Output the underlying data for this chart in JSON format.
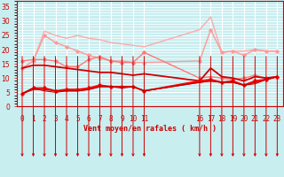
{
  "bg_color": "#c8eef0",
  "grid_color": "#ffffff",
  "x_ticks": [
    0,
    1,
    2,
    3,
    4,
    5,
    6,
    7,
    8,
    9,
    10,
    11,
    16,
    17,
    18,
    19,
    20,
    21,
    22,
    23
  ],
  "xlabel": "Vent moyen/en rafales ( km/h )",
  "ylim": [
    0,
    37
  ],
  "yticks": [
    0,
    5,
    10,
    15,
    20,
    25,
    30,
    35
  ],
  "xlim": [
    -0.5,
    23.5
  ],
  "lines": [
    {
      "x": [
        0,
        1,
        2,
        3,
        4,
        5,
        6,
        7,
        8,
        9,
        10,
        11,
        16,
        17,
        18,
        19,
        20,
        21,
        22,
        23
      ],
      "y": [
        13.5,
        16.0,
        26.5,
        25.0,
        24.0,
        25.0,
        24.0,
        23.5,
        22.5,
        22.0,
        21.5,
        21.0,
        27.0,
        31.5,
        19.0,
        19.5,
        19.5,
        20.0,
        19.5,
        19.5
      ],
      "color": "#ffaaaa",
      "lw": 1.0,
      "marker": null,
      "ms": 0
    },
    {
      "x": [
        0,
        1,
        2,
        3,
        4,
        5,
        6,
        7,
        8,
        9,
        10,
        11,
        16,
        17,
        18,
        19,
        20,
        21,
        22,
        23
      ],
      "y": [
        13.5,
        16.0,
        25.0,
        22.5,
        21.0,
        19.5,
        18.0,
        17.0,
        16.0,
        16.0,
        15.5,
        15.5,
        16.0,
        27.0,
        19.0,
        19.5,
        18.0,
        20.0,
        19.5,
        19.5
      ],
      "color": "#ff9999",
      "lw": 1.0,
      "marker": "D",
      "ms": 1.8
    },
    {
      "x": [
        0,
        1,
        2,
        3,
        4,
        5,
        6,
        7,
        8,
        9,
        10,
        11,
        16,
        17,
        18,
        19,
        20,
        21,
        22,
        23
      ],
      "y": [
        16.0,
        16.5,
        16.5,
        16.0,
        14.0,
        14.0,
        16.5,
        17.5,
        16.0,
        15.5,
        15.5,
        19.0,
        10.0,
        10.5,
        10.0,
        9.5,
        10.0,
        11.0,
        10.0,
        10.5
      ],
      "color": "#ff7777",
      "lw": 1.0,
      "marker": "D",
      "ms": 1.8
    },
    {
      "x": [
        0,
        1,
        2,
        3,
        4,
        5,
        6,
        7,
        8,
        9,
        10,
        11,
        16,
        17,
        18,
        19,
        20,
        21,
        22,
        23
      ],
      "y": [
        13.5,
        14.5,
        14.5,
        14.0,
        13.5,
        13.0,
        12.5,
        12.0,
        12.0,
        11.5,
        11.0,
        11.5,
        9.0,
        13.5,
        10.5,
        10.0,
        9.0,
        10.5,
        10.0,
        10.5
      ],
      "color": "#cc0000",
      "lw": 1.3,
      "marker": null,
      "ms": 0
    },
    {
      "x": [
        0,
        1,
        2,
        3,
        4,
        5,
        6,
        7,
        8,
        9,
        10,
        11,
        16,
        17,
        18,
        19,
        20,
        21,
        22,
        23
      ],
      "y": [
        4.5,
        6.5,
        6.5,
        5.5,
        6.0,
        6.0,
        6.5,
        7.5,
        7.0,
        7.0,
        7.0,
        5.5,
        9.0,
        9.5,
        8.5,
        9.0,
        7.5,
        9.0,
        9.5,
        10.5
      ],
      "color": "#ff0000",
      "lw": 1.3,
      "marker": "D",
      "ms": 1.8
    },
    {
      "x": [
        0,
        1,
        2,
        3,
        4,
        5,
        6,
        7,
        8,
        9,
        10,
        11,
        16,
        17,
        18,
        19,
        20,
        21,
        22,
        23
      ],
      "y": [
        4.5,
        6.0,
        6.0,
        5.5,
        5.5,
        5.5,
        6.0,
        7.0,
        7.0,
        7.0,
        7.0,
        5.5,
        8.5,
        9.0,
        8.5,
        8.5,
        7.5,
        8.5,
        9.5,
        10.5
      ],
      "color": "#dd0000",
      "lw": 1.0,
      "marker": null,
      "ms": 0
    },
    {
      "x": [
        0,
        1,
        2,
        3,
        4,
        5,
        6,
        7,
        8,
        9,
        10,
        11,
        16,
        17,
        18,
        19,
        20,
        21,
        22,
        23
      ],
      "y": [
        4.5,
        6.5,
        5.5,
        5.0,
        5.5,
        5.5,
        6.0,
        7.0,
        7.0,
        6.5,
        7.0,
        5.5,
        8.5,
        9.0,
        8.5,
        8.5,
        7.5,
        8.0,
        9.5,
        10.5
      ],
      "color": "#bb0000",
      "lw": 0.8,
      "marker": null,
      "ms": 0
    }
  ],
  "wind_dirs": [
    315,
    315,
    270,
    180,
    135,
    135,
    135,
    135,
    180,
    135,
    180,
    135,
    180,
    180,
    180,
    135,
    180,
    135,
    135,
    135
  ],
  "xlabel_fontsize": 6.0,
  "tick_fontsize": 5.5
}
